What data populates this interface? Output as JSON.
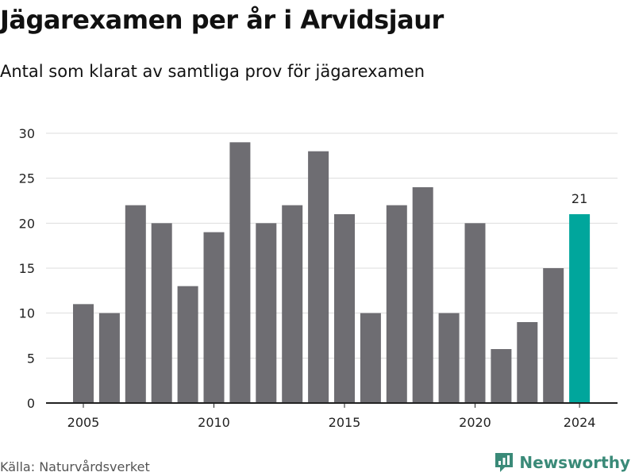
{
  "title": "Jägarexamen per år i Arvidsjaur",
  "subtitle": "Antal som klarat av samtliga prov för jägarexamen",
  "source": "Källa: Naturvårdsverket",
  "brand": {
    "name": "Newsworthy",
    "icon": "newsworthy-logo-icon",
    "color": "#3a8a78"
  },
  "colors": {
    "bar": "#6e6d72",
    "highlight": "#00a69c",
    "grid": "#dddddd",
    "axis": "#222222"
  },
  "chart_data": {
    "type": "bar",
    "x": [
      2005,
      2006,
      2007,
      2008,
      2009,
      2010,
      2011,
      2012,
      2013,
      2014,
      2015,
      2016,
      2017,
      2018,
      2019,
      2020,
      2021,
      2022,
      2023,
      2024
    ],
    "values": [
      11,
      10,
      22,
      20,
      13,
      19,
      29,
      20,
      22,
      28,
      21,
      10,
      22,
      24,
      10,
      20,
      6,
      9,
      15,
      21
    ],
    "highlight": {
      "x": 2024,
      "label": "21"
    },
    "xticks": [
      2005,
      2010,
      2015,
      2020,
      2024
    ],
    "yticks": [
      0,
      5,
      10,
      15,
      20,
      25,
      30
    ],
    "ylim": [
      0,
      30
    ],
    "title": "Jägarexamen per år i Arvidsjaur",
    "subtitle": "Antal som klarat av samtliga prov för jägarexamen",
    "xlabel": "",
    "ylabel": "",
    "grid": true,
    "legend": "none"
  }
}
